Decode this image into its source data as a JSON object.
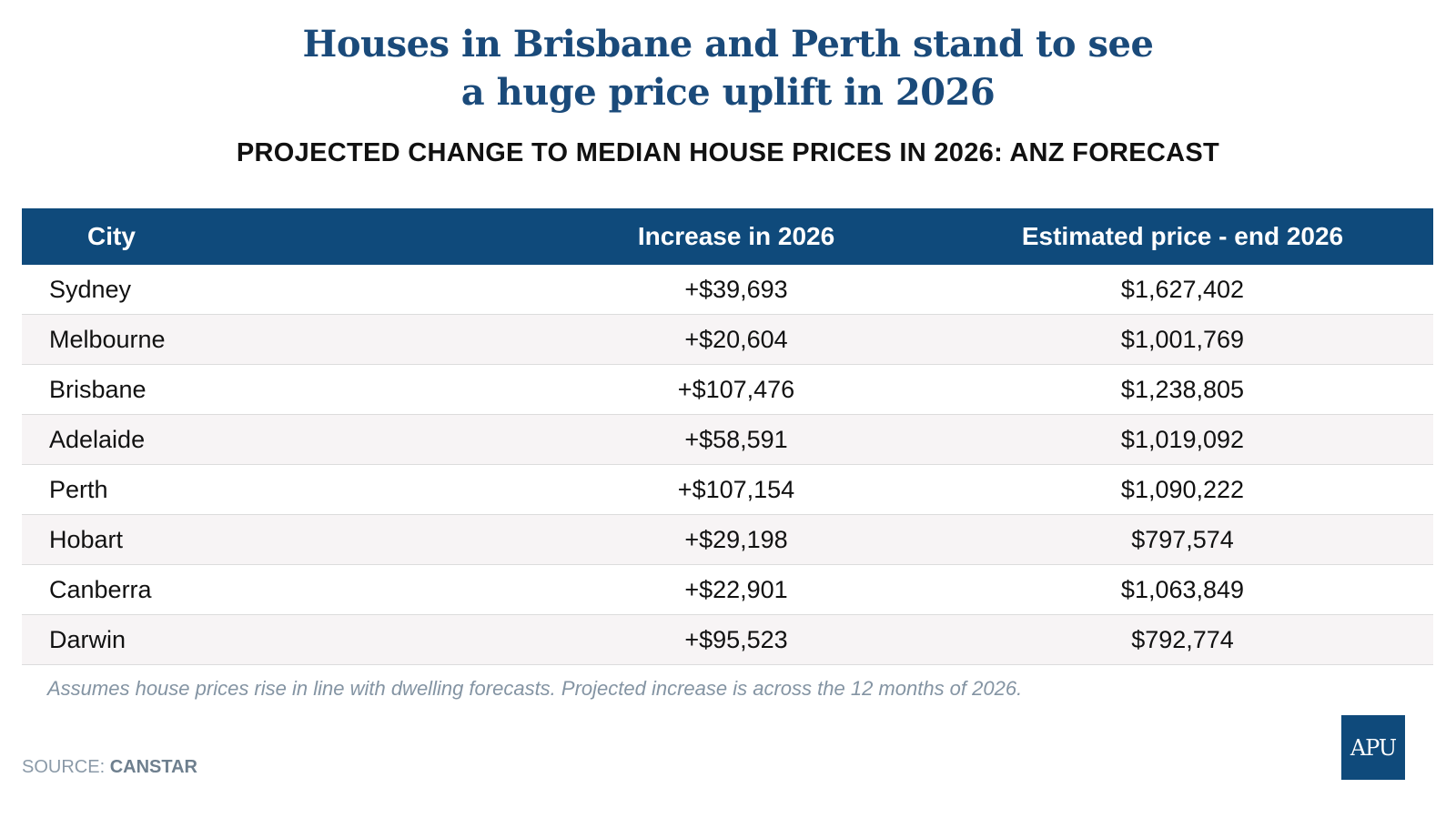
{
  "title_lines": [
    "Houses in Brisbane and Perth stand to see",
    "a huge price uplift in 2026"
  ],
  "subtitle": "PROJECTED CHANGE TO MEDIAN HOUSE PRICES IN 2026: ANZ FORECAST",
  "colors": {
    "brand": "#0f4a7b",
    "title": "#1a4a7a",
    "row_alt": "#f7f4f5"
  },
  "chart_data": {
    "type": "table",
    "title": "Houses in Brisbane and Perth stand to see a huge price uplift in 2026",
    "subtitle": "PROJECTED CHANGE TO MEDIAN HOUSE PRICES IN 2026: ANZ FORECAST",
    "columns": [
      "City",
      "Increase in 2026",
      "Estimated price - end 2026"
    ],
    "rows": [
      [
        "Sydney",
        "+$39,693",
        "$1,627,402"
      ],
      [
        "Melbourne",
        "+$20,604",
        "$1,001,769"
      ],
      [
        "Brisbane",
        "+$107,476",
        "$1,238,805"
      ],
      [
        "Adelaide",
        "+$58,591",
        "$1,019,092"
      ],
      [
        "Perth",
        "+$107,154",
        "$1,090,222"
      ],
      [
        "Hobart",
        "+$29,198",
        "$797,574"
      ],
      [
        "Canberra",
        "+$22,901",
        "$1,063,849"
      ],
      [
        "Darwin",
        "+$95,523",
        "$792,774"
      ]
    ]
  },
  "note": "Assumes house prices rise in line with dwelling forecasts. Projected increase is across the 12 months of 2026.",
  "source": {
    "label": "SOURCE: ",
    "name": "CANSTAR"
  },
  "logo": "APU"
}
